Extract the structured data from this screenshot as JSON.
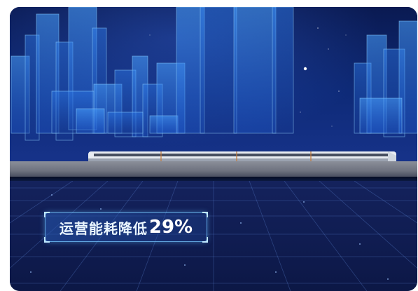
{
  "scene": {
    "headline_label": "运营能耗降低",
    "headline_value": "29%"
  },
  "colors": {
    "sky_top": "#0a1a52",
    "building_glow": "#3f8dff",
    "track": "#7a7e8a",
    "floor": "#101d52",
    "badge_border": "#78c8ff"
  }
}
